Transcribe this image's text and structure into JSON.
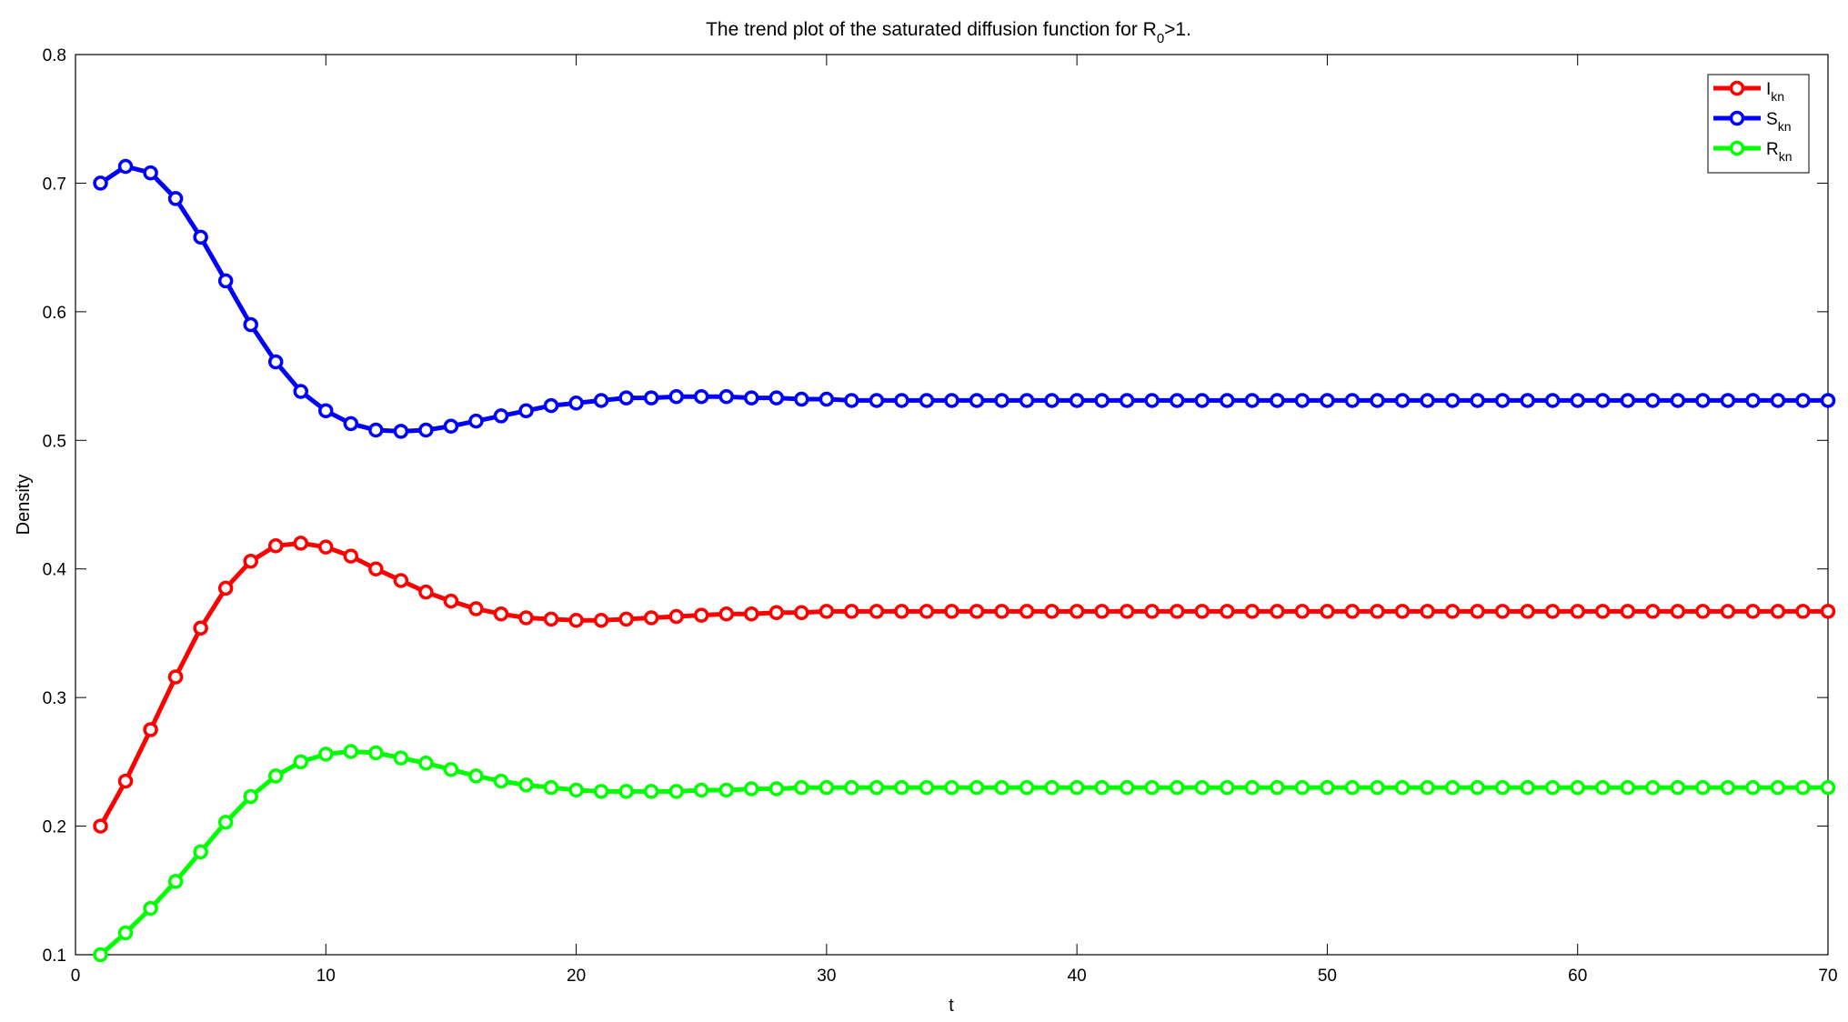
{
  "chart_data": {
    "type": "line",
    "title": {
      "main": "The trend plot of the saturated diffusion function for R",
      "subscript": "0",
      "suffix": ">1."
    },
    "xlabel": "t",
    "ylabel": "Density",
    "xlim": [
      0,
      70
    ],
    "ylim": [
      0.1,
      0.8
    ],
    "xticks": [
      0,
      10,
      20,
      30,
      40,
      50,
      60,
      70
    ],
    "yticks": [
      0.1,
      0.2,
      0.3,
      0.4,
      0.5,
      0.6,
      0.7,
      0.8
    ],
    "grid": false,
    "legend_position": "top-right",
    "marker": "circle",
    "x": [
      1,
      2,
      3,
      4,
      5,
      6,
      7,
      8,
      9,
      10,
      11,
      12,
      13,
      14,
      15,
      16,
      17,
      18,
      19,
      20,
      21,
      22,
      23,
      24,
      25,
      26,
      27,
      28,
      29,
      30,
      31,
      32,
      33,
      34,
      35,
      36,
      37,
      38,
      39,
      40,
      41,
      42,
      43,
      44,
      45,
      46,
      47,
      48,
      49,
      50,
      51,
      52,
      53,
      54,
      55,
      56,
      57,
      58,
      59,
      60,
      61,
      62,
      63,
      64,
      65,
      66,
      67,
      68,
      69,
      70
    ],
    "series": [
      {
        "name": "I",
        "name_subscript": "kn",
        "color": "#ff0000",
        "values": [
          0.2,
          0.235,
          0.275,
          0.316,
          0.354,
          0.385,
          0.406,
          0.418,
          0.42,
          0.417,
          0.41,
          0.4,
          0.391,
          0.382,
          0.375,
          0.369,
          0.365,
          0.362,
          0.361,
          0.36,
          0.36,
          0.361,
          0.362,
          0.363,
          0.364,
          0.365,
          0.365,
          0.366,
          0.366,
          0.367,
          0.367,
          0.367,
          0.367,
          0.367,
          0.367,
          0.367,
          0.367,
          0.367,
          0.367,
          0.367,
          0.367,
          0.367,
          0.367,
          0.367,
          0.367,
          0.367,
          0.367,
          0.367,
          0.367,
          0.367,
          0.367,
          0.367,
          0.367,
          0.367,
          0.367,
          0.367,
          0.367,
          0.367,
          0.367,
          0.367,
          0.367,
          0.367,
          0.367,
          0.367,
          0.367,
          0.367,
          0.367,
          0.367,
          0.367,
          0.367
        ]
      },
      {
        "name": "S",
        "name_subscript": "kn",
        "color": "#0000ff",
        "values": [
          0.7,
          0.713,
          0.708,
          0.688,
          0.658,
          0.624,
          0.59,
          0.561,
          0.538,
          0.523,
          0.513,
          0.508,
          0.507,
          0.508,
          0.511,
          0.515,
          0.519,
          0.523,
          0.527,
          0.529,
          0.531,
          0.533,
          0.533,
          0.534,
          0.534,
          0.534,
          0.533,
          0.533,
          0.532,
          0.532,
          0.531,
          0.531,
          0.531,
          0.531,
          0.531,
          0.531,
          0.531,
          0.531,
          0.531,
          0.531,
          0.531,
          0.531,
          0.531,
          0.531,
          0.531,
          0.531,
          0.531,
          0.531,
          0.531,
          0.531,
          0.531,
          0.531,
          0.531,
          0.531,
          0.531,
          0.531,
          0.531,
          0.531,
          0.531,
          0.531,
          0.531,
          0.531,
          0.531,
          0.531,
          0.531,
          0.531,
          0.531,
          0.531,
          0.531,
          0.531
        ]
      },
      {
        "name": "R",
        "name_subscript": "kn",
        "color": "#00ff00",
        "values": [
          0.1,
          0.117,
          0.136,
          0.157,
          0.18,
          0.203,
          0.223,
          0.239,
          0.25,
          0.256,
          0.258,
          0.257,
          0.253,
          0.249,
          0.244,
          0.239,
          0.235,
          0.232,
          0.23,
          0.228,
          0.227,
          0.227,
          0.227,
          0.227,
          0.228,
          0.228,
          0.229,
          0.229,
          0.23,
          0.23,
          0.23,
          0.23,
          0.23,
          0.23,
          0.23,
          0.23,
          0.23,
          0.23,
          0.23,
          0.23,
          0.23,
          0.23,
          0.23,
          0.23,
          0.23,
          0.23,
          0.23,
          0.23,
          0.23,
          0.23,
          0.23,
          0.23,
          0.23,
          0.23,
          0.23,
          0.23,
          0.23,
          0.23,
          0.23,
          0.23,
          0.23,
          0.23,
          0.23,
          0.23,
          0.23,
          0.23,
          0.23,
          0.23,
          0.23,
          0.23
        ]
      }
    ]
  }
}
